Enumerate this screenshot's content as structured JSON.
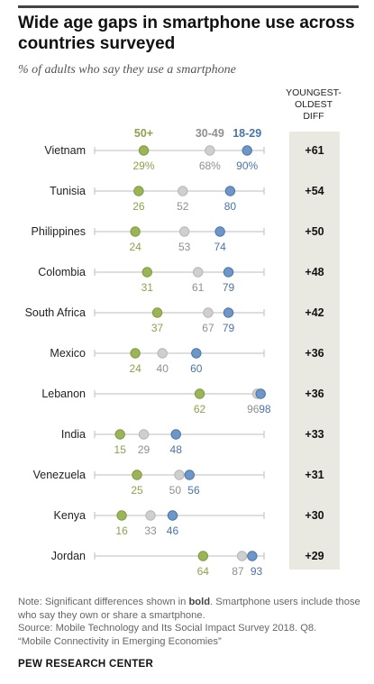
{
  "header": {
    "title": "Wide age gaps in smartphone use across countries surveyed",
    "subtitle": "% of adults who say they use a smartphone",
    "diff_header": [
      "YOUNGEST-",
      "OLDEST",
      "DIFF"
    ]
  },
  "colors": {
    "oldest": "#9bb458",
    "middle": "#cfcfcf",
    "youngest": "#6e97c9",
    "line": "#bdbdbd",
    "band": "#e9e9e2"
  },
  "chart_data": {
    "type": "dot",
    "xlim": [
      0,
      100
    ],
    "series": [
      {
        "name": "50+",
        "key": "oldest"
      },
      {
        "name": "30-49",
        "key": "middle"
      },
      {
        "name": "18-29",
        "key": "youngest"
      }
    ],
    "rows": [
      {
        "country": "Vietnam",
        "oldest": 29,
        "middle": 68,
        "youngest": 90,
        "diff": "+61",
        "oldest_label": "29%",
        "middle_label": "68%",
        "youngest_label": "90%"
      },
      {
        "country": "Tunisia",
        "oldest": 26,
        "middle": 52,
        "youngest": 80,
        "diff": "+54",
        "oldest_label": "26",
        "middle_label": "52",
        "youngest_label": "80"
      },
      {
        "country": "Philippines",
        "oldest": 24,
        "middle": 53,
        "youngest": 74,
        "diff": "+50",
        "oldest_label": "24",
        "middle_label": "53",
        "youngest_label": "74"
      },
      {
        "country": "Colombia",
        "oldest": 31,
        "middle": 61,
        "youngest": 79,
        "diff": "+48",
        "oldest_label": "31",
        "middle_label": "61",
        "youngest_label": "79"
      },
      {
        "country": "South Africa",
        "oldest": 37,
        "middle": 67,
        "youngest": 79,
        "diff": "+42",
        "oldest_label": "37",
        "middle_label": "67",
        "youngest_label": "79"
      },
      {
        "country": "Mexico",
        "oldest": 24,
        "middle": 40,
        "youngest": 60,
        "diff": "+36",
        "oldest_label": "24",
        "middle_label": "40",
        "youngest_label": "60"
      },
      {
        "country": "Lebanon",
        "oldest": 62,
        "middle": 96,
        "youngest": 98,
        "diff": "+36",
        "oldest_label": "62",
        "middle_label": "96",
        "youngest_label": "98"
      },
      {
        "country": "India",
        "oldest": 15,
        "middle": 29,
        "youngest": 48,
        "diff": "+33",
        "oldest_label": "15",
        "middle_label": "29",
        "youngest_label": "48"
      },
      {
        "country": "Venezuela",
        "oldest": 25,
        "middle": 50,
        "youngest": 56,
        "diff": "+31",
        "oldest_label": "25",
        "middle_label": "50",
        "youngest_label": "56"
      },
      {
        "country": "Kenya",
        "oldest": 16,
        "middle": 33,
        "youngest": 46,
        "diff": "+30",
        "oldest_label": "16",
        "middle_label": "33",
        "youngest_label": "46"
      },
      {
        "country": "Jordan",
        "oldest": 64,
        "middle": 87,
        "youngest": 93,
        "diff": "+29",
        "oldest_label": "64",
        "middle_label": "87",
        "youngest_label": "93"
      }
    ]
  },
  "footer": {
    "note_label": "Note: Significant differences shown in ",
    "note_bold": "bold",
    "note_rest": ". Smartphone users include those who say they own or share a smartphone.",
    "source_line1": "Source: Mobile Technology and Its Social Impact Survey 2018. Q8.",
    "source_line2": "“Mobile Connectivity in Emerging Economies”",
    "brand": "PEW RESEARCH CENTER"
  }
}
